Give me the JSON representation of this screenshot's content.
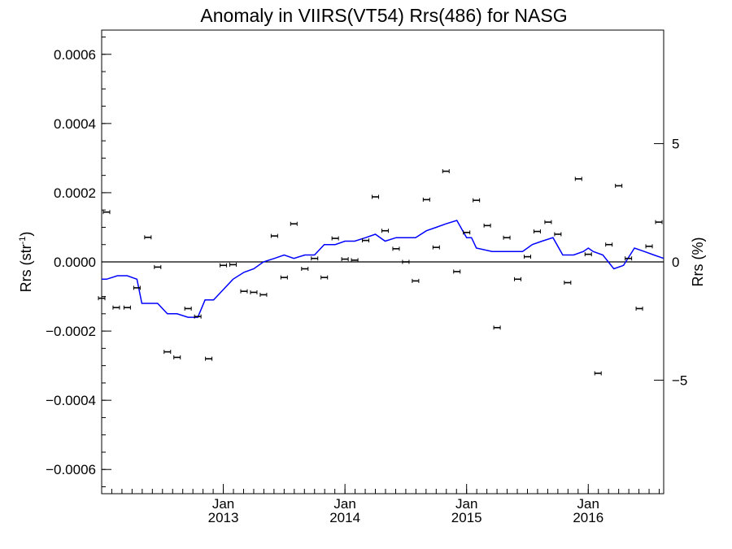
{
  "chart_data": {
    "type": "line",
    "title": "Anomaly in VIIRS(VT54) Rrs(486) for NASG",
    "ylabel": "Rrs (str",
    "ylabel_sup": "-1",
    "ylabel_close": ")",
    "y2label": "Rrs (%)",
    "x_ticks": [
      {
        "x": 2013.0,
        "month": "Jan",
        "year": "2013"
      },
      {
        "x": 2014.0,
        "month": "Jan",
        "year": "2014"
      },
      {
        "x": 2015.0,
        "month": "Jan",
        "year": "2015"
      },
      {
        "x": 2016.0,
        "month": "Jan",
        "year": "2016"
      }
    ],
    "y_ticks": [
      {
        "v": 0.0006,
        "label": "0.0006"
      },
      {
        "v": 0.0004,
        "label": "0.0004"
      },
      {
        "v": 0.0002,
        "label": "0.0002"
      },
      {
        "v": 0.0,
        "label": "0.0000"
      },
      {
        "v": -0.0002,
        "label": "−0.0002"
      },
      {
        "v": -0.0004,
        "label": "−0.0004"
      },
      {
        "v": -0.0006,
        "label": "−0.0006"
      }
    ],
    "y2_ticks": [
      {
        "v": 5,
        "label": "5"
      },
      {
        "v": 0,
        "label": "0"
      },
      {
        "v": -5,
        "label": "−5"
      }
    ],
    "xlim": [
      2012.0,
      2016.62
    ],
    "ylim": [
      -0.00067,
      0.00067
    ],
    "y2lim": [
      -9.8,
      9.8
    ],
    "grid": false,
    "series": [
      {
        "type": "line",
        "color": "#0000ff",
        "x": [
          2012.0,
          2012.04,
          2012.13,
          2012.21,
          2012.29,
          2012.33,
          2012.42,
          2012.46,
          2012.54,
          2012.62,
          2012.71,
          2012.79,
          2012.85,
          2012.92,
          2013.0,
          2013.08,
          2013.17,
          2013.25,
          2013.33,
          2013.42,
          2013.5,
          2013.58,
          2013.67,
          2013.75,
          2013.83,
          2013.92,
          2014.0,
          2014.08,
          2014.17,
          2014.25,
          2014.33,
          2014.42,
          2014.5,
          2014.58,
          2014.67,
          2014.75,
          2014.83,
          2014.92,
          2015.0,
          2015.04,
          2015.08,
          2015.21,
          2015.29,
          2015.38,
          2015.46,
          2015.54,
          2015.62,
          2015.71,
          2015.79,
          2015.88,
          2015.96,
          2016.0,
          2016.04,
          2016.12,
          2016.21,
          2016.29,
          2016.38,
          2016.46,
          2016.54,
          2016.62
        ],
        "y": [
          -5e-05,
          -5e-05,
          -4e-05,
          -4e-05,
          -5e-05,
          -0.00012,
          -0.00012,
          -0.00012,
          -0.00015,
          -0.00015,
          -0.00016,
          -0.00016,
          -0.00011,
          -0.00011,
          -8e-05,
          -5e-05,
          -3e-05,
          -2e-05,
          0.0,
          1e-05,
          2e-05,
          1e-05,
          2e-05,
          2e-05,
          5e-05,
          5e-05,
          6e-05,
          6e-05,
          7e-05,
          8e-05,
          6e-05,
          7e-05,
          7e-05,
          7e-05,
          9e-05,
          0.0001,
          0.00011,
          0.00012,
          7e-05,
          7e-05,
          4e-05,
          3e-05,
          3e-05,
          3e-05,
          3e-05,
          5e-05,
          6e-05,
          7e-05,
          2e-05,
          2e-05,
          3e-05,
          4e-05,
          3e-05,
          2e-05,
          -2e-05,
          -1e-05,
          4e-05,
          3e-05,
          2e-05,
          1e-05
        ]
      },
      {
        "type": "scatter",
        "marker": "errorbar",
        "color": "#000000",
        "x": [
          2012.0,
          2012.04,
          2012.12,
          2012.21,
          2012.29,
          2012.38,
          2012.46,
          2012.54,
          2012.62,
          2012.71,
          2012.79,
          2012.88,
          2013.0,
          2013.08,
          2013.17,
          2013.25,
          2013.33,
          2013.42,
          2013.5,
          2013.58,
          2013.67,
          2013.75,
          2013.83,
          2013.92,
          2014.0,
          2014.08,
          2014.17,
          2014.25,
          2014.33,
          2014.42,
          2014.5,
          2014.58,
          2014.67,
          2014.75,
          2014.83,
          2014.92,
          2015.0,
          2015.08,
          2015.17,
          2015.25,
          2015.33,
          2015.42,
          2015.5,
          2015.58,
          2015.67,
          2015.75,
          2015.83,
          2015.92,
          2016.0,
          2016.08,
          2016.17,
          2016.25,
          2016.33,
          2016.42,
          2016.5,
          2016.58
        ],
        "y": [
          -0.000105,
          0.000144,
          -0.000132,
          -0.000132,
          -7.5e-05,
          7.1e-05,
          -1.5e-05,
          -0.00026,
          -0.000276,
          -0.000135,
          -0.000158,
          -0.00028,
          -1e-05,
          -8e-06,
          -8.5e-05,
          -8.8e-05,
          -9.5e-05,
          7.5e-05,
          -4.5e-05,
          0.00011,
          -2e-05,
          1e-05,
          -4.5e-05,
          6.8e-05,
          8e-06,
          5e-06,
          6.2e-05,
          0.000188,
          9e-05,
          3.8e-05,
          0.0,
          -5.5e-05,
          0.00018,
          4.2e-05,
          0.000262,
          -2.8e-05,
          8.5e-05,
          0.000178,
          0.000105,
          -0.00019,
          7e-05,
          -5e-05,
          1.5e-05,
          8.8e-05,
          0.000115,
          8e-05,
          -6e-05,
          0.00024,
          2.2e-05,
          -0.000322,
          5e-05,
          0.00022,
          1e-05,
          -0.000135,
          4.5e-05,
          0.000115
        ]
      }
    ]
  }
}
